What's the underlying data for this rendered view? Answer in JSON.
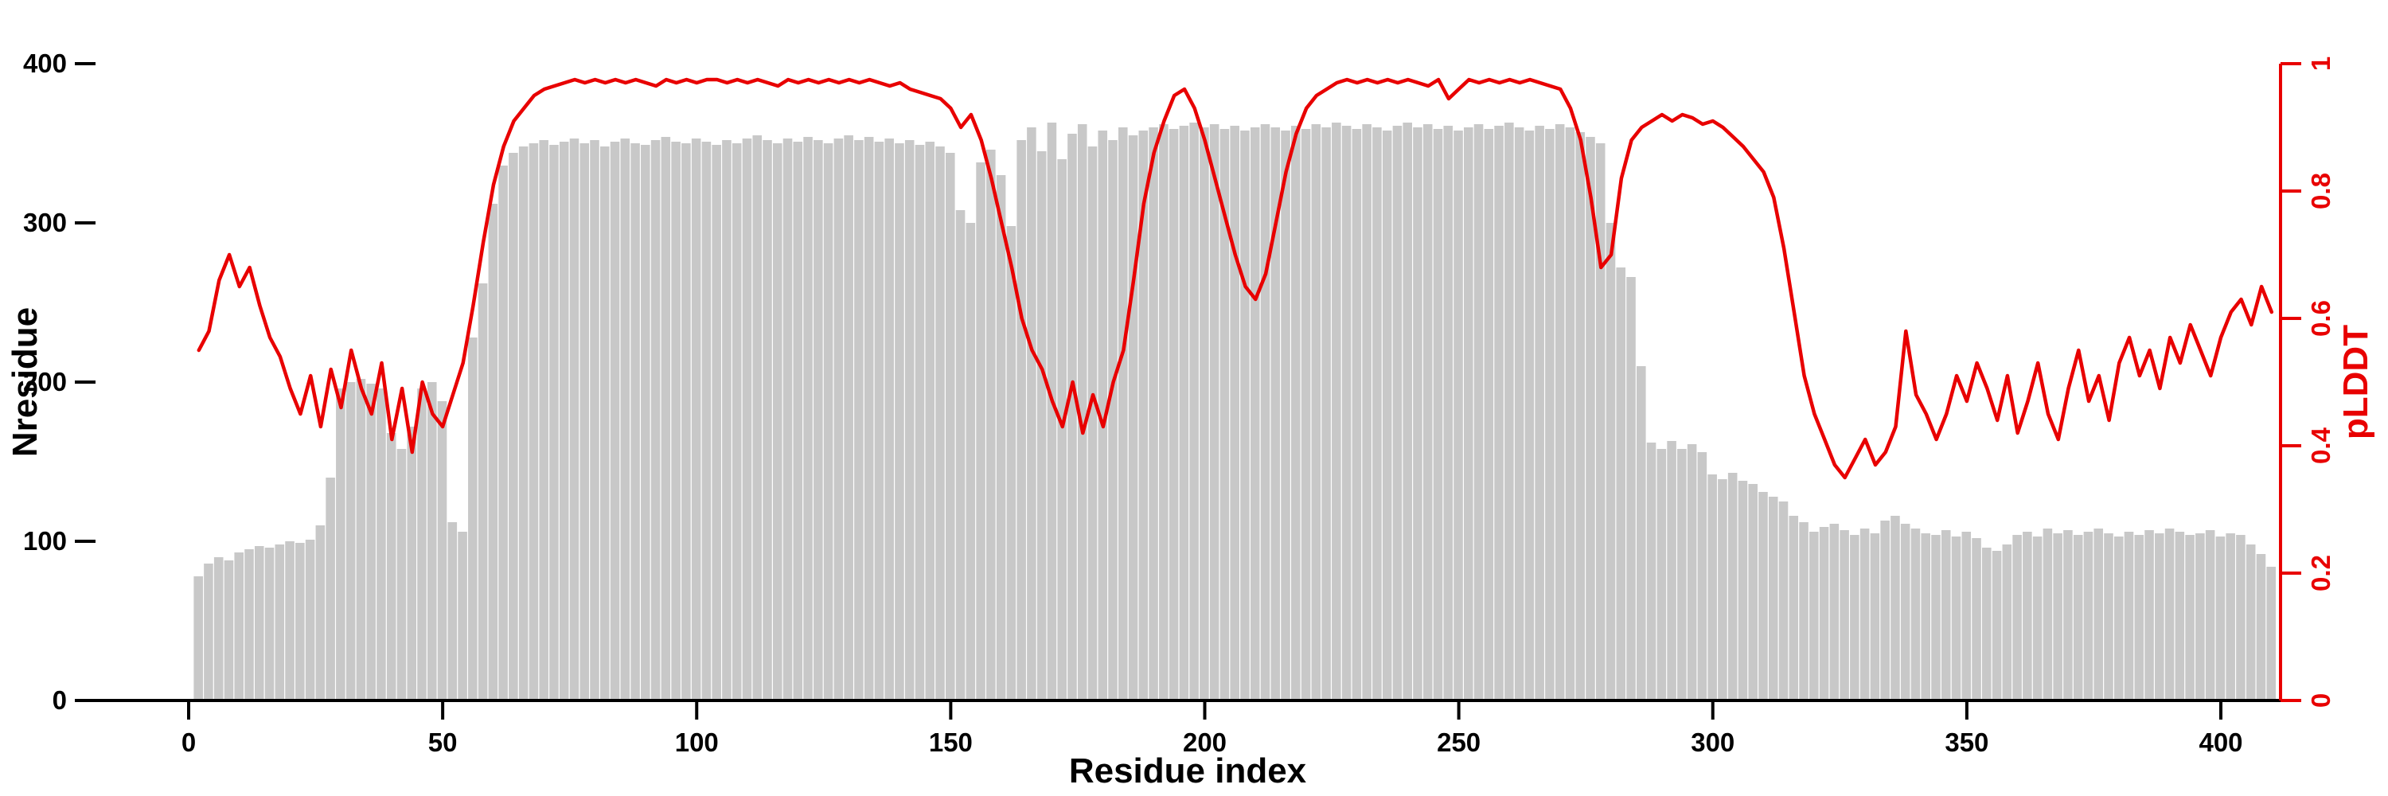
{
  "figure": {
    "background": "#ffffff",
    "colors": {
      "bars": "#c8c8c8",
      "line": "#e80000",
      "axis": "#000000",
      "right_axis": "#e80000"
    }
  },
  "chart_data": {
    "type": "bar",
    "title": "",
    "xlabel": "Residue index",
    "ylabel_left": "Nresidue",
    "ylabel_right": "pLDDT",
    "xlim": [
      0,
      410
    ],
    "ylim_left": [
      0,
      400
    ],
    "ylim_right": [
      0,
      1
    ],
    "xticks": [
      0,
      50,
      100,
      150,
      200,
      250,
      300,
      350,
      400
    ],
    "yticks_left": [
      0,
      100,
      200,
      300,
      400
    ],
    "yticks_right": [
      0,
      0.2,
      0.4,
      0.6,
      0.8,
      1
    ],
    "grid": false,
    "legend": "none",
    "x_start": 2,
    "x_step": 2,
    "series": [
      {
        "name": "Nresidue",
        "type": "bar",
        "axis": "left",
        "color": "#c8c8c8",
        "values": [
          78,
          86,
          90,
          88,
          93,
          95,
          97,
          96,
          98,
          100,
          99,
          101,
          110,
          140,
          196,
          200,
          202,
          199,
          196,
          168,
          158,
          172,
          196,
          200,
          188,
          112,
          106,
          228,
          262,
          312,
          336,
          344,
          348,
          350,
          352,
          349,
          351,
          353,
          350,
          352,
          348,
          351,
          353,
          350,
          349,
          352,
          354,
          351,
          350,
          353,
          351,
          349,
          352,
          350,
          353,
          355,
          352,
          350,
          353,
          351,
          354,
          352,
          350,
          353,
          355,
          352,
          354,
          351,
          353,
          350,
          352,
          349,
          351,
          348,
          344,
          308,
          300,
          338,
          346,
          330,
          298,
          352,
          360,
          345,
          363,
          340,
          356,
          362,
          348,
          358,
          352,
          360,
          355,
          358,
          360,
          362,
          359,
          361,
          363,
          360,
          362,
          359,
          361,
          358,
          360,
          362,
          360,
          358,
          361,
          359,
          362,
          360,
          363,
          361,
          359,
          362,
          360,
          358,
          361,
          363,
          360,
          362,
          359,
          361,
          358,
          360,
          362,
          359,
          361,
          363,
          360,
          358,
          361,
          359,
          362,
          360,
          357,
          354,
          350,
          300,
          272,
          266,
          210,
          162,
          158,
          163,
          158,
          161,
          156,
          142,
          139,
          143,
          138,
          136,
          131,
          128,
          125,
          116,
          112,
          106,
          109,
          111,
          107,
          104,
          108,
          105,
          113,
          116,
          111,
          108,
          105,
          104,
          107,
          103,
          106,
          102,
          96,
          94,
          98,
          104,
          106,
          103,
          108,
          105,
          107,
          104,
          106,
          108,
          105,
          103,
          106,
          104,
          107,
          105,
          108,
          106,
          104,
          105,
          107,
          103,
          105,
          104,
          98,
          92,
          84
        ]
      },
      {
        "name": "pLDDT",
        "type": "line",
        "axis": "right",
        "color": "#e80000",
        "values": [
          0.55,
          0.58,
          0.66,
          0.7,
          0.65,
          0.68,
          0.62,
          0.57,
          0.54,
          0.49,
          0.45,
          0.51,
          0.43,
          0.52,
          0.46,
          0.55,
          0.49,
          0.45,
          0.53,
          0.41,
          0.49,
          0.39,
          0.5,
          0.45,
          0.43,
          0.48,
          0.53,
          0.62,
          0.72,
          0.81,
          0.87,
          0.91,
          0.93,
          0.95,
          0.96,
          0.965,
          0.97,
          0.975,
          0.97,
          0.975,
          0.97,
          0.975,
          0.97,
          0.975,
          0.97,
          0.965,
          0.975,
          0.97,
          0.975,
          0.97,
          0.975,
          0.975,
          0.97,
          0.975,
          0.97,
          0.975,
          0.97,
          0.965,
          0.975,
          0.97,
          0.975,
          0.97,
          0.975,
          0.97,
          0.975,
          0.97,
          0.975,
          0.97,
          0.965,
          0.97,
          0.96,
          0.955,
          0.95,
          0.945,
          0.93,
          0.9,
          0.92,
          0.88,
          0.82,
          0.75,
          0.68,
          0.6,
          0.55,
          0.52,
          0.47,
          0.43,
          0.5,
          0.42,
          0.48,
          0.43,
          0.5,
          0.55,
          0.66,
          0.78,
          0.86,
          0.91,
          0.95,
          0.96,
          0.93,
          0.88,
          0.82,
          0.76,
          0.7,
          0.65,
          0.63,
          0.67,
          0.75,
          0.83,
          0.89,
          0.93,
          0.95,
          0.96,
          0.97,
          0.975,
          0.97,
          0.975,
          0.97,
          0.975,
          0.97,
          0.975,
          0.97,
          0.965,
          0.975,
          0.945,
          0.96,
          0.975,
          0.97,
          0.975,
          0.97,
          0.975,
          0.97,
          0.975,
          0.97,
          0.965,
          0.96,
          0.93,
          0.88,
          0.79,
          0.68,
          0.7,
          0.82,
          0.88,
          0.9,
          0.91,
          0.92,
          0.91,
          0.92,
          0.915,
          0.905,
          0.91,
          0.9,
          0.885,
          0.87,
          0.85,
          0.83,
          0.79,
          0.71,
          0.61,
          0.51,
          0.45,
          0.41,
          0.37,
          0.35,
          0.38,
          0.41,
          0.37,
          0.39,
          0.43,
          0.58,
          0.48,
          0.45,
          0.41,
          0.45,
          0.51,
          0.47,
          0.53,
          0.49,
          0.44,
          0.51,
          0.42,
          0.47,
          0.53,
          0.45,
          0.41,
          0.49,
          0.55,
          0.47,
          0.51,
          0.44,
          0.53,
          0.57,
          0.51,
          0.55,
          0.49,
          0.57,
          0.53,
          0.59,
          0.55,
          0.51,
          0.57,
          0.61,
          0.63,
          0.59,
          0.65,
          0.61
        ]
      }
    ]
  }
}
